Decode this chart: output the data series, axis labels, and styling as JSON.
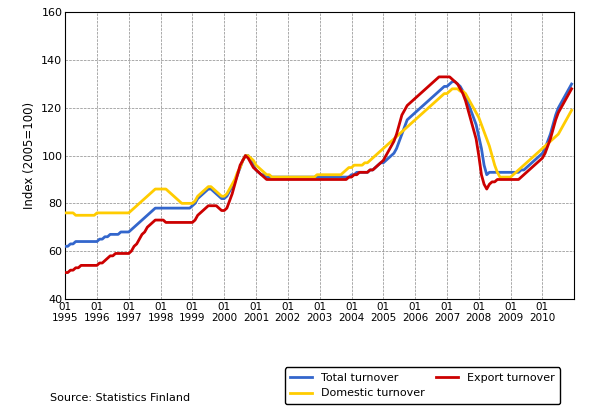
{
  "title": "",
  "ylabel": "Index (2005=100)",
  "source_text": "Source: Statistics Finland",
  "ylim": [
    40,
    160
  ],
  "yticks": [
    40,
    60,
    80,
    100,
    120,
    140,
    160
  ],
  "line_colors": {
    "total": "#3366CC",
    "domestic": "#FFCC00",
    "export": "#CC0000"
  },
  "line_width": 2.0,
  "legend": {
    "total": "Total turnover",
    "domestic": "Domestic turnover",
    "export": "Export turnover"
  },
  "total_turnover": [
    62,
    62,
    63,
    63,
    64,
    64,
    64,
    64,
    64,
    64,
    64,
    64,
    64,
    65,
    65,
    66,
    66,
    67,
    67,
    67,
    67,
    68,
    68,
    68,
    68,
    69,
    70,
    71,
    72,
    73,
    74,
    75,
    76,
    77,
    78,
    78,
    78,
    78,
    78,
    78,
    78,
    78,
    78,
    78,
    78,
    78,
    78,
    78,
    79,
    80,
    82,
    83,
    84,
    85,
    86,
    86,
    85,
    84,
    83,
    82,
    82,
    83,
    85,
    87,
    89,
    92,
    95,
    98,
    100,
    100,
    98,
    96,
    94,
    93,
    92,
    92,
    91,
    91,
    91,
    91,
    91,
    91,
    91,
    91,
    91,
    91,
    91,
    91,
    91,
    91,
    91,
    91,
    91,
    91,
    91,
    91,
    91,
    91,
    91,
    91,
    91,
    91,
    91,
    91,
    91,
    91,
    91,
    91,
    92,
    92,
    93,
    93,
    93,
    93,
    93,
    94,
    94,
    95,
    96,
    97,
    97,
    98,
    99,
    100,
    101,
    103,
    106,
    109,
    112,
    115,
    116,
    117,
    118,
    119,
    120,
    121,
    122,
    123,
    124,
    125,
    126,
    127,
    128,
    129,
    129,
    130,
    131,
    131,
    130,
    129,
    127,
    125,
    122,
    119,
    116,
    113,
    108,
    103,
    96,
    92,
    93,
    93,
    93,
    93,
    93,
    93,
    93,
    93,
    93,
    93,
    93,
    93,
    94,
    94,
    95,
    96,
    97,
    98,
    99,
    100,
    101,
    103,
    106,
    109,
    113,
    117,
    120,
    122,
    124,
    126,
    128,
    130
  ],
  "domestic_turnover": [
    76,
    76,
    76,
    76,
    75,
    75,
    75,
    75,
    75,
    75,
    75,
    75,
    76,
    76,
    76,
    76,
    76,
    76,
    76,
    76,
    76,
    76,
    76,
    76,
    76,
    77,
    78,
    79,
    80,
    81,
    82,
    83,
    84,
    85,
    86,
    86,
    86,
    86,
    86,
    85,
    84,
    83,
    82,
    81,
    80,
    80,
    80,
    80,
    80,
    81,
    83,
    84,
    85,
    86,
    87,
    87,
    86,
    85,
    84,
    83,
    83,
    84,
    86,
    88,
    90,
    93,
    95,
    98,
    100,
    100,
    99,
    98,
    96,
    95,
    94,
    93,
    92,
    92,
    91,
    91,
    91,
    91,
    91,
    91,
    91,
    91,
    91,
    91,
    91,
    91,
    91,
    91,
    91,
    91,
    91,
    92,
    92,
    92,
    92,
    92,
    92,
    92,
    92,
    92,
    92,
    93,
    94,
    95,
    95,
    96,
    96,
    96,
    96,
    97,
    97,
    98,
    99,
    100,
    101,
    102,
    103,
    104,
    105,
    106,
    107,
    108,
    109,
    110,
    111,
    112,
    113,
    114,
    115,
    116,
    117,
    118,
    119,
    120,
    121,
    122,
    123,
    124,
    125,
    126,
    126,
    127,
    128,
    128,
    128,
    127,
    127,
    126,
    124,
    122,
    120,
    118,
    116,
    113,
    110,
    107,
    104,
    100,
    96,
    93,
    91,
    91,
    91,
    91,
    91,
    92,
    93,
    94,
    95,
    96,
    97,
    98,
    99,
    100,
    101,
    102,
    103,
    104,
    105,
    106,
    107,
    108,
    109,
    111,
    113,
    115,
    117,
    119
  ],
  "export_turnover": [
    51,
    51,
    52,
    52,
    53,
    53,
    54,
    54,
    54,
    54,
    54,
    54,
    54,
    55,
    55,
    56,
    57,
    58,
    58,
    59,
    59,
    59,
    59,
    59,
    59,
    60,
    62,
    63,
    65,
    67,
    68,
    70,
    71,
    72,
    73,
    73,
    73,
    73,
    72,
    72,
    72,
    72,
    72,
    72,
    72,
    72,
    72,
    72,
    72,
    73,
    75,
    76,
    77,
    78,
    79,
    79,
    79,
    79,
    78,
    77,
    77,
    78,
    81,
    84,
    88,
    92,
    96,
    98,
    100,
    99,
    97,
    95,
    94,
    93,
    92,
    91,
    90,
    90,
    90,
    90,
    90,
    90,
    90,
    90,
    90,
    90,
    90,
    90,
    90,
    90,
    90,
    90,
    90,
    90,
    90,
    90,
    90,
    90,
    90,
    90,
    90,
    90,
    90,
    90,
    90,
    90,
    90,
    91,
    91,
    92,
    92,
    93,
    93,
    93,
    93,
    94,
    94,
    95,
    96,
    97,
    98,
    100,
    102,
    104,
    106,
    109,
    113,
    117,
    119,
    121,
    122,
    123,
    124,
    125,
    126,
    127,
    128,
    129,
    130,
    131,
    132,
    133,
    133,
    133,
    133,
    133,
    132,
    131,
    130,
    128,
    126,
    123,
    119,
    115,
    111,
    107,
    100,
    92,
    88,
    86,
    88,
    89,
    89,
    90,
    90,
    90,
    90,
    90,
    90,
    90,
    90,
    90,
    91,
    92,
    93,
    94,
    95,
    96,
    97,
    98,
    99,
    101,
    104,
    107,
    111,
    115,
    118,
    120,
    122,
    124,
    126,
    128
  ],
  "n_points": 192
}
